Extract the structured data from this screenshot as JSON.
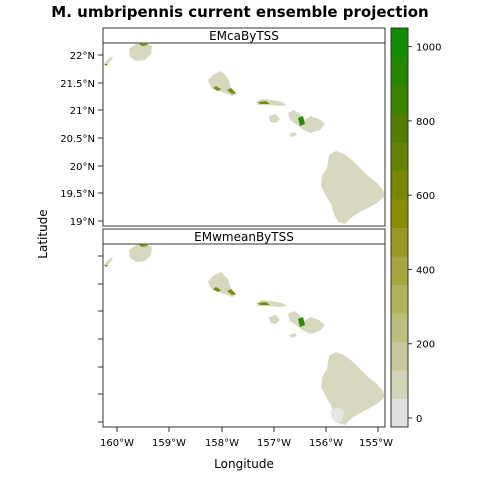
{
  "title": "M. umbripennis current ensemble projection",
  "xlabel": "Longitude",
  "ylabel": "Latitude",
  "panels": [
    {
      "name": "EMcaByTSS"
    },
    {
      "name": "EMwmeanByTSS"
    }
  ],
  "lon_ticks": [
    "160°W",
    "159°W",
    "158°W",
    "157°W",
    "156°W",
    "155°W"
  ],
  "lat_ticks": [
    "22°N",
    "21.5°N",
    "21°N",
    "20.5°N",
    "20°N",
    "19.5°N",
    "19°N"
  ],
  "legend": {
    "ticks": [
      "1000",
      "800",
      "600",
      "400",
      "200",
      "0"
    ],
    "min": 0,
    "max": 1050,
    "colors": [
      "#e0e0e0",
      "#d4d4b8",
      "#c7c79a",
      "#bdbd7c",
      "#b3b35e",
      "#a6a640",
      "#9a9a22",
      "#8c8c00",
      "#7a8600",
      "#668100",
      "#4f7e00",
      "#3a8200",
      "#258600",
      "#108c00"
    ]
  },
  "colors": {
    "land_low": "#d8d8c0",
    "mid": "#7a8a10",
    "high": "#2d8a0a"
  }
}
